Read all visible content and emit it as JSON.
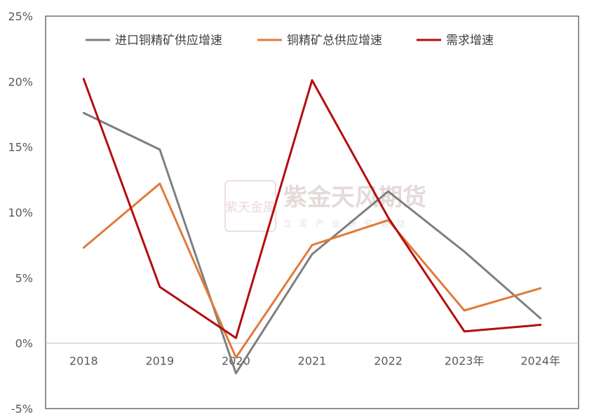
{
  "watermark": {
    "logo_text": "紫天金風",
    "title": "紫金天风期货",
    "subtitle": "立足产业研究驱动"
  },
  "chart_data": {
    "type": "line",
    "categories": [
      "2018",
      "2019",
      "2020",
      "2021",
      "2022",
      "2023年",
      "2024年"
    ],
    "y_ticks": [
      "25%",
      "20%",
      "15%",
      "10%",
      "5%",
      "0%",
      "-5%"
    ],
    "ylim": [
      -5,
      25
    ],
    "y_unit": "%",
    "grid": false,
    "legend_position": "top",
    "series": [
      {
        "name": "进口铜精矿供应增速",
        "color": "#7f7f7f",
        "values": [
          17.6,
          14.8,
          -2.3,
          6.8,
          11.6,
          7.0,
          1.9
        ]
      },
      {
        "name": "铜精矿总供应增速",
        "color": "#e07b39",
        "values": [
          7.3,
          12.2,
          -1.1,
          7.5,
          9.4,
          2.5,
          4.2
        ]
      },
      {
        "name": "需求增速",
        "color": "#b50d0d",
        "values": [
          20.2,
          4.3,
          0.4,
          20.1,
          9.6,
          0.9,
          1.4
        ]
      }
    ]
  }
}
